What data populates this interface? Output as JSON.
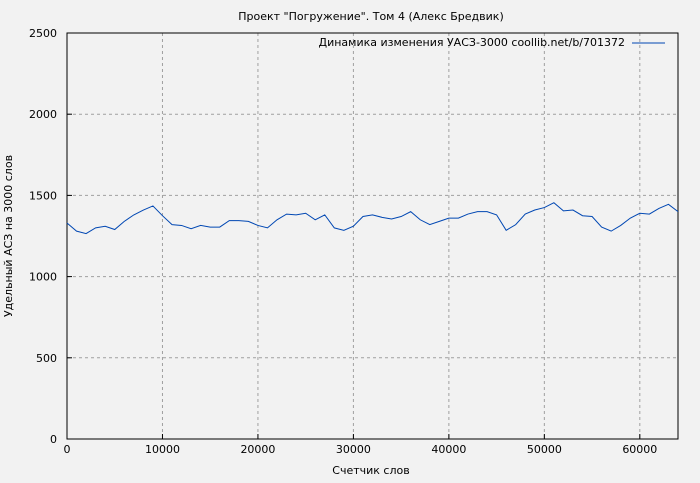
{
  "chart_data": {
    "type": "line",
    "title": "Проект \"Погружение\". Том 4 (Алекс Бредвик)",
    "xlabel": "Счетчик слов",
    "ylabel": "Удельный АСЗ на 3000 слов",
    "xlim": [
      0,
      64000
    ],
    "ylim": [
      0,
      2500
    ],
    "xticks": [
      0,
      10000,
      20000,
      30000,
      40000,
      50000,
      60000
    ],
    "yticks": [
      0,
      500,
      1000,
      1500,
      2000,
      2500
    ],
    "grid": true,
    "legend_position": "top-right",
    "series": [
      {
        "name": "Динамика изменения УАСЗ-3000 coollib.net/b/701372",
        "color": "#0047b3",
        "x": [
          0,
          1000,
          2000,
          3000,
          4000,
          5000,
          6000,
          7000,
          8000,
          9000,
          10000,
          11000,
          12000,
          13000,
          14000,
          15000,
          16000,
          17000,
          18000,
          19000,
          20000,
          21000,
          22000,
          23000,
          24000,
          25000,
          26000,
          27000,
          28000,
          29000,
          30000,
          31000,
          32000,
          33000,
          34000,
          35000,
          36000,
          37000,
          38000,
          39000,
          40000,
          41000,
          42000,
          43000,
          44000,
          45000,
          46000,
          47000,
          48000,
          49000,
          50000,
          51000,
          52000,
          53000,
          54000,
          55000,
          56000,
          57000,
          58000,
          59000,
          60000,
          61000,
          62000,
          63000,
          64000
        ],
        "y": [
          1330,
          1280,
          1265,
          1300,
          1310,
          1290,
          1340,
          1380,
          1410,
          1435,
          1375,
          1320,
          1315,
          1295,
          1315,
          1305,
          1305,
          1345,
          1345,
          1340,
          1315,
          1300,
          1350,
          1385,
          1380,
          1390,
          1350,
          1380,
          1300,
          1285,
          1310,
          1370,
          1380,
          1365,
          1355,
          1370,
          1400,
          1350,
          1320,
          1340,
          1360,
          1360,
          1385,
          1400,
          1400,
          1380,
          1285,
          1320,
          1385,
          1410,
          1425,
          1455,
          1405,
          1410,
          1375,
          1370,
          1305,
          1280,
          1315,
          1360,
          1390,
          1385,
          1420,
          1445,
          1400
        ]
      }
    ]
  }
}
